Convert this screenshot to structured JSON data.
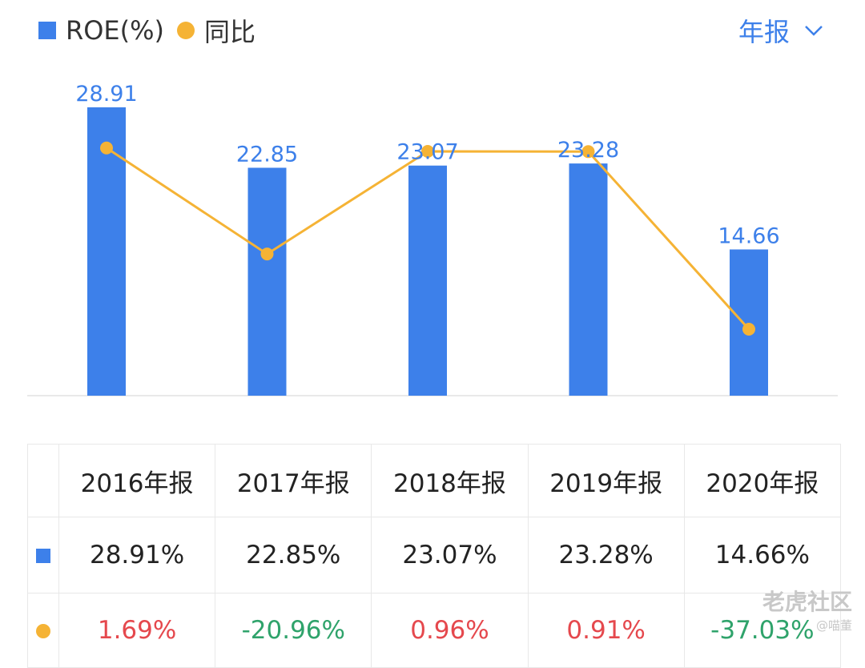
{
  "legend": {
    "roe_label": "ROE(%)",
    "yoy_label": "同比"
  },
  "period": {
    "label": "年报"
  },
  "colors": {
    "bar": "#3d80ea",
    "line": "#f5b335",
    "positive": "#e5484d",
    "negative": "#2fa36b"
  },
  "chart_data": {
    "type": "bar",
    "categories": [
      "2016年报",
      "2017年报",
      "2018年报",
      "2019年报",
      "2020年报"
    ],
    "series": [
      {
        "name": "ROE(%)",
        "type": "bar",
        "values": [
          28.91,
          22.85,
          23.07,
          23.28,
          14.66
        ],
        "labels": [
          "28.91",
          "22.85",
          "23.07",
          "23.28",
          "14.66"
        ]
      },
      {
        "name": "同比",
        "type": "line",
        "values": [
          1.69,
          -20.96,
          0.96,
          0.91,
          -37.03
        ]
      }
    ],
    "legend_position": "top-left"
  },
  "table": {
    "headers": [
      "2016年报",
      "2017年报",
      "2018年报",
      "2019年报",
      "2020年报"
    ],
    "roe": [
      "28.91%",
      "22.85%",
      "23.07%",
      "23.28%",
      "14.66%"
    ],
    "yoy": [
      "1.69%",
      "-20.96%",
      "0.96%",
      "0.91%",
      "-37.03%"
    ]
  },
  "watermark": {
    "brand": "老虎社区",
    "user": "@喵董"
  }
}
